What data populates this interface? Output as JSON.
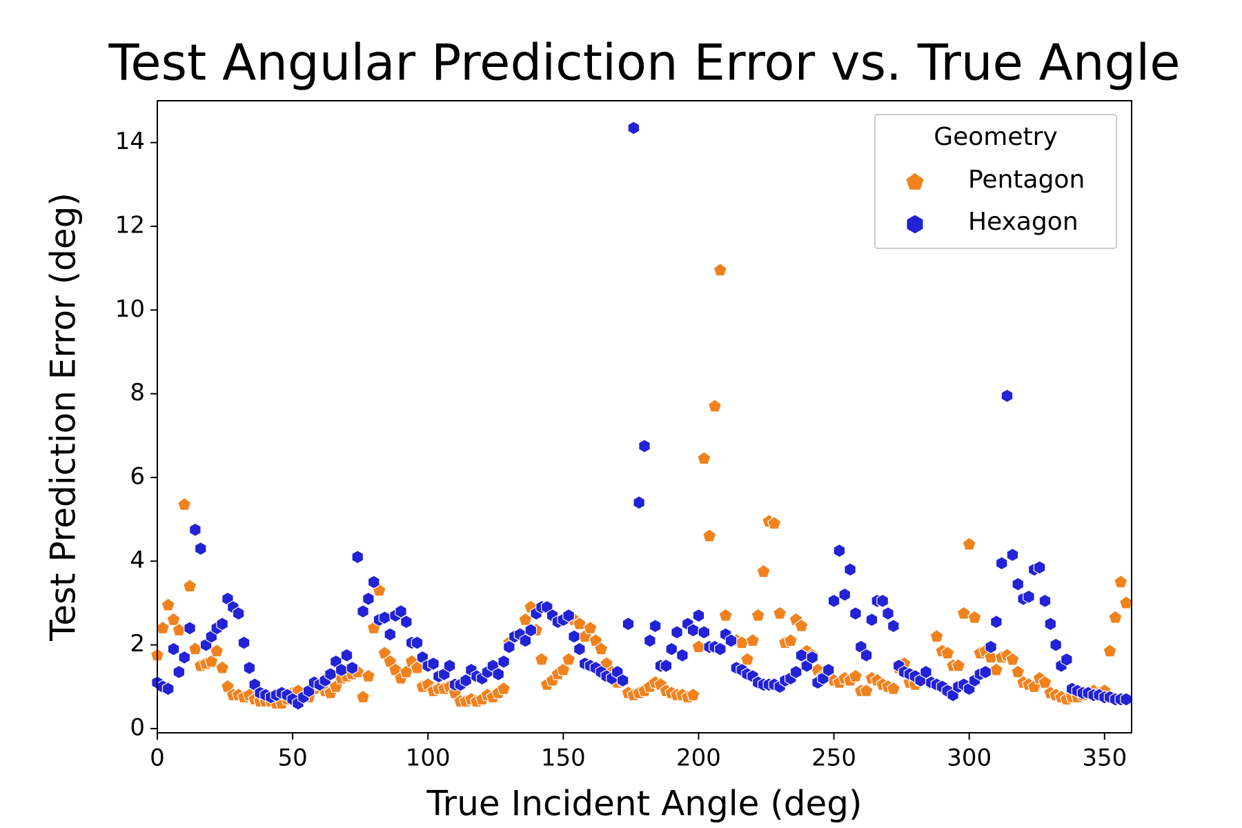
{
  "chart_data": {
    "type": "scatter",
    "title": "Test Angular Prediction Error vs. True Angle",
    "x_label": "True Incident Angle (deg)",
    "y_label": "Test Prediction Error (deg)",
    "xlim": [
      0,
      360
    ],
    "ylim": [
      -0.1,
      15
    ],
    "xticks": [
      0,
      50,
      100,
      150,
      200,
      250,
      300,
      350
    ],
    "yticks": [
      0,
      2,
      4,
      6,
      8,
      10,
      12,
      14
    ],
    "legend_title": "Geometry",
    "legend_position": "upper right",
    "x": [
      0,
      2,
      4,
      6,
      8,
      10,
      12,
      14,
      16,
      18,
      20,
      22,
      24,
      26,
      28,
      30,
      32,
      34,
      36,
      38,
      40,
      42,
      44,
      46,
      48,
      50,
      52,
      54,
      56,
      58,
      60,
      62,
      64,
      66,
      68,
      70,
      72,
      74,
      76,
      78,
      80,
      82,
      84,
      86,
      88,
      90,
      92,
      94,
      96,
      98,
      100,
      102,
      104,
      106,
      108,
      110,
      112,
      114,
      116,
      118,
      120,
      122,
      124,
      126,
      128,
      130,
      132,
      134,
      136,
      138,
      140,
      142,
      144,
      146,
      148,
      150,
      152,
      154,
      156,
      158,
      160,
      162,
      164,
      166,
      168,
      170,
      172,
      174,
      176,
      178,
      180,
      182,
      184,
      186,
      188,
      190,
      192,
      194,
      196,
      198,
      200,
      202,
      204,
      206,
      208,
      210,
      212,
      214,
      216,
      218,
      220,
      222,
      224,
      226,
      228,
      230,
      232,
      234,
      236,
      238,
      240,
      242,
      244,
      246,
      248,
      250,
      252,
      254,
      256,
      258,
      260,
      262,
      264,
      266,
      268,
      270,
      272,
      274,
      276,
      278,
      280,
      282,
      284,
      286,
      288,
      290,
      292,
      294,
      296,
      298,
      300,
      302,
      304,
      306,
      308,
      310,
      312,
      314,
      316,
      318,
      320,
      322,
      324,
      326,
      328,
      330,
      332,
      334,
      336,
      338,
      340,
      342,
      344,
      346,
      348,
      350,
      352,
      354,
      356,
      358
    ],
    "series": [
      {
        "name": "Pentagon",
        "color": "#f0821e",
        "marker": "pentagon",
        "values": [
          1.75,
          2.4,
          2.95,
          2.6,
          2.35,
          5.35,
          3.4,
          1.9,
          1.5,
          1.55,
          1.6,
          1.85,
          1.45,
          1.0,
          0.8,
          0.8,
          0.75,
          0.8,
          0.7,
          0.65,
          0.65,
          0.65,
          0.6,
          0.6,
          0.7,
          0.85,
          0.9,
          0.75,
          0.75,
          0.95,
          1.05,
          0.9,
          0.85,
          1.0,
          1.2,
          1.25,
          1.3,
          1.35,
          0.75,
          1.25,
          2.4,
          3.3,
          1.8,
          1.6,
          1.4,
          1.2,
          1.35,
          1.6,
          1.45,
          1.0,
          1.05,
          0.9,
          0.95,
          0.95,
          1.0,
          0.85,
          0.65,
          0.65,
          0.7,
          0.65,
          0.7,
          0.8,
          0.75,
          0.85,
          0.95,
          2.05,
          2.2,
          2.25,
          2.6,
          2.9,
          2.35,
          1.65,
          1.05,
          1.15,
          1.3,
          1.4,
          1.65,
          2.6,
          2.5,
          2.2,
          2.4,
          2.1,
          1.9,
          1.55,
          1.35,
          1.1,
          1.15,
          0.85,
          0.8,
          0.85,
          0.9,
          1.0,
          1.1,
          1.05,
          0.9,
          0.85,
          0.8,
          0.8,
          0.75,
          0.8,
          1.95,
          6.45,
          4.6,
          7.7,
          10.95,
          2.7,
          2.1,
          2.1,
          2.05,
          1.65,
          2.1,
          2.7,
          3.75,
          4.95,
          4.9,
          2.75,
          2.05,
          2.1,
          2.6,
          2.45,
          1.85,
          1.75,
          1.4,
          1.25,
          1.3,
          1.15,
          1.1,
          1.2,
          1.15,
          1.25,
          0.9,
          0.9,
          1.2,
          1.15,
          1.05,
          1.0,
          0.95,
          1.45,
          1.55,
          1.1,
          1.05,
          1.15,
          1.25,
          1.1,
          2.2,
          1.85,
          1.8,
          1.5,
          1.5,
          2.75,
          4.4,
          2.65,
          1.8,
          1.85,
          1.7,
          1.4,
          1.7,
          1.75,
          1.65,
          1.35,
          1.1,
          1.05,
          1.0,
          1.2,
          1.1,
          0.85,
          0.8,
          0.75,
          0.7,
          0.75,
          0.75,
          0.8,
          0.85,
          0.9,
          0.85,
          0.9,
          1.85,
          2.65,
          3.5,
          3.0
        ]
      },
      {
        "name": "Hexagon",
        "color": "#2222d6",
        "marker": "hexagon",
        "values": [
          1.1,
          1.0,
          0.95,
          1.9,
          1.35,
          1.7,
          2.4,
          4.75,
          4.3,
          2.0,
          2.2,
          2.4,
          2.5,
          3.1,
          2.9,
          2.75,
          2.05,
          1.45,
          1.05,
          0.85,
          0.8,
          0.75,
          0.8,
          0.85,
          0.8,
          0.7,
          0.6,
          0.75,
          0.9,
          1.1,
          1.05,
          1.15,
          1.3,
          1.6,
          1.4,
          1.75,
          1.45,
          4.1,
          2.8,
          3.1,
          3.5,
          2.6,
          2.65,
          2.25,
          2.7,
          2.8,
          2.55,
          2.05,
          2.05,
          1.7,
          1.5,
          1.55,
          1.25,
          1.3,
          1.5,
          1.05,
          1.05,
          1.15,
          1.4,
          1.25,
          1.2,
          1.35,
          1.5,
          1.3,
          1.6,
          1.95,
          2.2,
          2.25,
          2.1,
          2.35,
          2.75,
          2.9,
          2.9,
          2.7,
          2.55,
          2.6,
          2.7,
          2.2,
          1.9,
          1.55,
          1.5,
          1.45,
          1.35,
          1.25,
          1.2,
          1.35,
          1.15,
          2.5,
          14.35,
          5.4,
          6.75,
          2.1,
          2.45,
          1.5,
          1.5,
          1.9,
          2.3,
          1.75,
          2.5,
          2.35,
          2.7,
          2.3,
          1.95,
          1.95,
          1.9,
          2.25,
          2.1,
          1.45,
          1.4,
          1.3,
          1.25,
          1.1,
          1.05,
          1.05,
          1.05,
          1.0,
          1.15,
          1.2,
          1.35,
          1.75,
          1.5,
          1.7,
          1.1,
          1.2,
          1.4,
          3.05,
          4.25,
          3.2,
          3.8,
          2.75,
          1.95,
          1.75,
          2.6,
          3.05,
          3.05,
          2.75,
          2.45,
          1.5,
          1.35,
          1.3,
          1.25,
          1.15,
          1.35,
          1.1,
          1.05,
          1.0,
          0.9,
          0.8,
          1.0,
          1.05,
          0.95,
          1.15,
          1.3,
          1.35,
          1.95,
          2.55,
          3.95,
          7.95,
          4.15,
          3.45,
          3.1,
          3.15,
          3.8,
          3.85,
          3.05,
          2.5,
          2.0,
          1.5,
          1.65,
          0.95,
          0.9,
          0.85,
          0.85,
          0.8,
          0.8,
          0.75,
          0.75,
          0.7,
          0.7,
          0.7
        ]
      }
    ]
  }
}
